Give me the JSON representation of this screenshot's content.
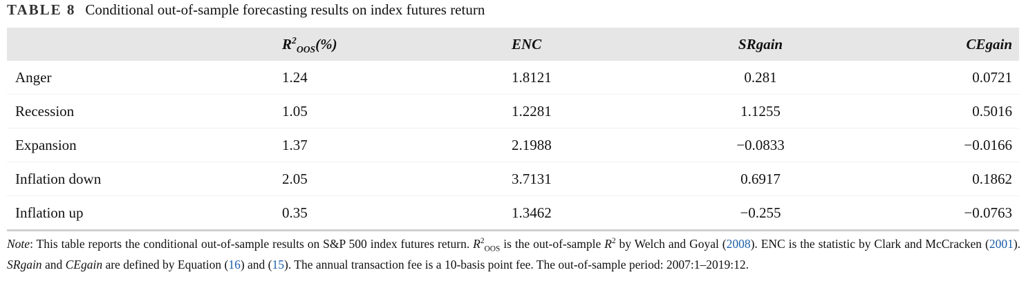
{
  "caption": {
    "label": "TABLE 8",
    "title": "Conditional out-of-sample forecasting results on index futures return"
  },
  "table": {
    "header": {
      "row_label": null,
      "r2": {
        "base": "R",
        "sup": "2",
        "sub": "OOS",
        "suffix": "(%)"
      },
      "enc": "ENC",
      "srgain": "SRgain",
      "cegain": "CEgain"
    },
    "rows": [
      [
        "Anger",
        "1.24",
        "1.8121",
        "0.281",
        "0.0721"
      ],
      [
        "Recession",
        "1.05",
        "1.2281",
        "1.1255",
        "0.5016"
      ],
      [
        "Expansion",
        "1.37",
        "2.1988",
        "−0.0833",
        "−0.0166"
      ],
      [
        "Inflation down",
        "2.05",
        "3.7131",
        "0.6917",
        "0.1862"
      ],
      [
        "Inflation up",
        "0.35",
        "1.3462",
        "−0.255",
        "−0.0763"
      ]
    ]
  },
  "note": [
    "Note",
    ": This table reports the conditional out-of-sample results on S&P 500 index futures return. ",
    "R",
    "2",
    "OOS",
    " is the out-of-sample ",
    "R",
    "2",
    " by Welch and Goyal (",
    "2008",
    "). ENC is the statistic by Clark and McCracken (",
    "2001",
    "). ",
    "SRgain",
    " and ",
    "CEgain",
    " are defined by Equation (",
    "16",
    ") and (",
    "15",
    "). The annual transaction fee is a 10-basis point fee. The out-of-sample period: 2007:1–2019:12."
  ]
}
